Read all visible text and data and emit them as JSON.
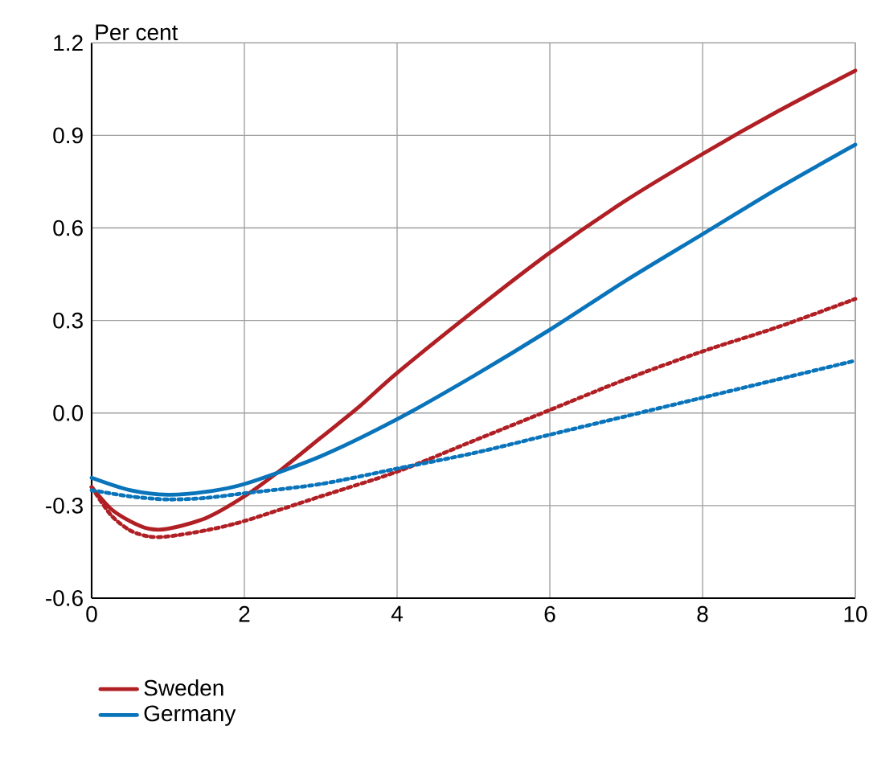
{
  "chart_data": {
    "type": "line",
    "ylabel": "Per cent",
    "xlim": [
      0,
      10
    ],
    "xticks": [
      0,
      2,
      4,
      6,
      8,
      10
    ],
    "ylim": [
      -0.6,
      1.2
    ],
    "yticks": [
      -0.6,
      -0.3,
      {
        "value": 0,
        "label": "0.0"
      },
      0.3,
      0.6,
      0.9,
      1.2
    ],
    "grid": true,
    "legend": "bottom left",
    "series": [
      {
        "name": "Sweden",
        "color": "#b01f24",
        "line_style": "solid",
        "x": [
          0,
          0.25,
          0.5,
          0.75,
          1,
          1.5,
          2,
          2.5,
          3,
          3.5,
          4,
          5,
          6,
          7,
          8,
          9,
          10
        ],
        "values": [
          -0.24,
          -0.31,
          -0.35,
          -0.375,
          -0.375,
          -0.34,
          -0.27,
          -0.18,
          -0.08,
          0.02,
          0.13,
          0.33,
          0.52,
          0.69,
          0.84,
          0.98,
          1.11
        ]
      },
      {
        "name": "Germany",
        "color": "#0a74bb",
        "line_style": "solid",
        "x": [
          0,
          0.5,
          1,
          1.5,
          2,
          3,
          4,
          5,
          6,
          7,
          8,
          9,
          10
        ],
        "values": [
          -0.21,
          -0.25,
          -0.265,
          -0.255,
          -0.23,
          -0.14,
          -0.02,
          0.12,
          0.27,
          0.43,
          0.58,
          0.73,
          0.87
        ]
      },
      {
        "color": "#b01f24",
        "line_style": "dotted",
        "x": [
          0,
          0.25,
          0.5,
          0.75,
          1,
          1.5,
          2,
          3,
          4,
          5,
          6,
          7,
          8,
          9,
          10
        ],
        "values": [
          -0.24,
          -0.33,
          -0.38,
          -0.4,
          -0.4,
          -0.38,
          -0.35,
          -0.27,
          -0.19,
          -0.09,
          0.01,
          0.11,
          0.2,
          0.28,
          0.37
        ]
      },
      {
        "color": "#0a74bb",
        "line_style": "dotted",
        "x": [
          0,
          0.5,
          1,
          1.5,
          2,
          3,
          4,
          5,
          6,
          7,
          8,
          9,
          10
        ],
        "values": [
          -0.25,
          -0.27,
          -0.28,
          -0.275,
          -0.26,
          -0.23,
          -0.18,
          -0.13,
          -0.07,
          -0.01,
          0.05,
          0.11,
          0.17
        ]
      }
    ]
  }
}
